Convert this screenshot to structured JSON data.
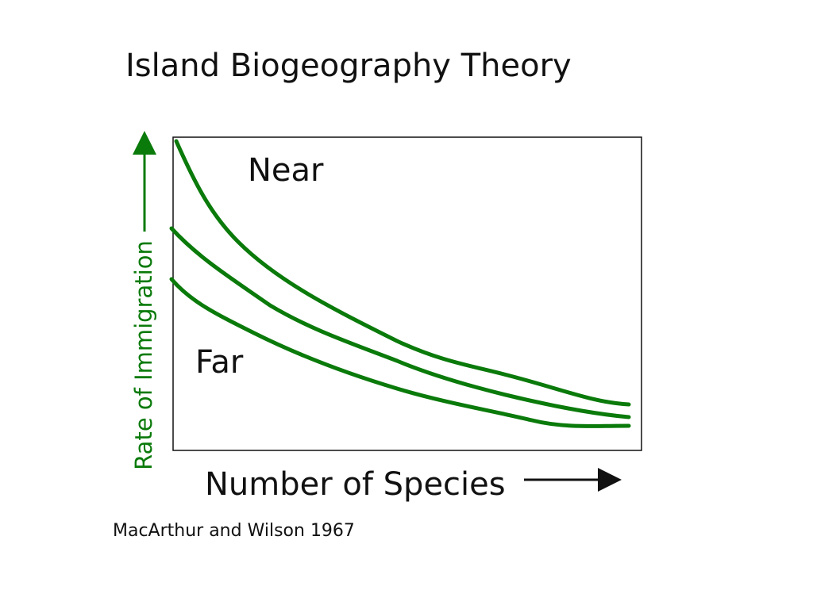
{
  "title": "Island Biogeography Theory",
  "y_axis_label": "Rate of Immigration",
  "x_axis_label": "Number of Species",
  "curve_labels": {
    "near": "Near",
    "far": "Far"
  },
  "citation": "MacArthur and Wilson 1967"
}
